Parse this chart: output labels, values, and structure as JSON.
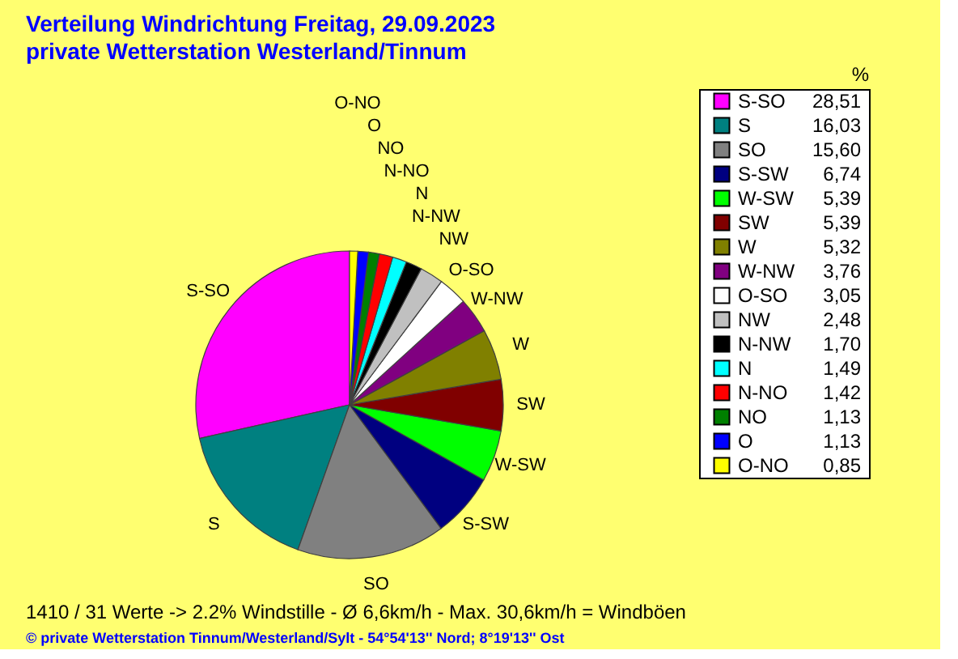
{
  "chart_data": {
    "type": "pie",
    "title": "Verteilung Windrichtung   Freitag, 29.09.2023",
    "subtitle": "private Wetterstation Westerland/Tinnum",
    "legend_title": "%",
    "legend": "right",
    "categories": [
      "S-SO",
      "S",
      "SO",
      "S-SW",
      "W-SW",
      "SW",
      "W",
      "W-NW",
      "O-SO",
      "NW",
      "N-NW",
      "N",
      "N-NO",
      "NO",
      "O",
      "O-NO"
    ],
    "values": [
      28.51,
      16.03,
      15.6,
      6.74,
      5.39,
      5.39,
      5.32,
      3.76,
      3.05,
      2.48,
      1.7,
      1.49,
      1.42,
      1.13,
      1.13,
      0.85
    ],
    "value_labels": [
      "28,51",
      "16,03",
      "15,60",
      "6,74",
      "5,39",
      "5,39",
      "5,32",
      "3,76",
      "3,05",
      "2,48",
      "1,70",
      "1,49",
      "1,42",
      "1,13",
      "1,13",
      "0,85"
    ],
    "colors": [
      "#ff00ff",
      "#008080",
      "#808080",
      "#000080",
      "#00ff00",
      "#800000",
      "#808000",
      "#800080",
      "#ffffff",
      "#c0c0c0",
      "#000000",
      "#00ffff",
      "#ff0000",
      "#008000",
      "#0000ff",
      "#ffff00"
    ],
    "annotations": [
      "1410 / 31 Werte  -> 2.2% Windstille   -   Ø 6,6km/h  -  Max. 30,6km/h = Windböen",
      "© private Wetterstation Tinnum/Westerland/Sylt   -   54°54'13'' Nord; 8°19'13'' Ost"
    ]
  }
}
